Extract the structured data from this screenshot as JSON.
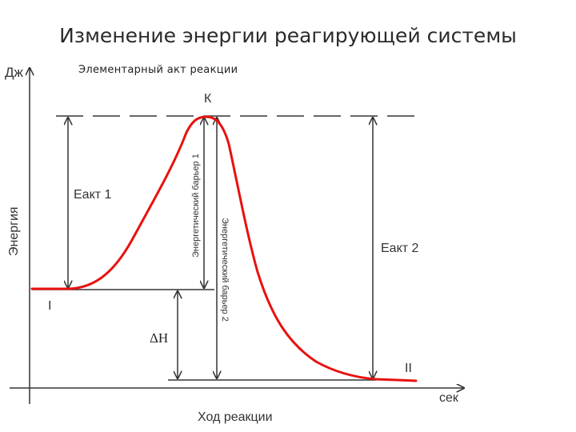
{
  "header": {
    "title": "Изменение энергии реагирующей системы",
    "subtitle": "Элементарный акт реакции"
  },
  "diagram": {
    "y_unit": "Дж",
    "y_axis_label": "Энергия",
    "x_unit": "сек",
    "x_axis_label": "Ход реакции",
    "transition_state_label": "К",
    "initial_state_label": "I",
    "final_state_label": "II",
    "eact1_label": "Еакт 1",
    "eact2_label": "Еакт 2",
    "delta_h_label": "ΔH",
    "barrier1_label": "Энергетический барьер 1",
    "barrier2_label": "Энергетический барьер 2",
    "colors": {
      "curve": "#e8120f",
      "lines": "#333333"
    }
  }
}
